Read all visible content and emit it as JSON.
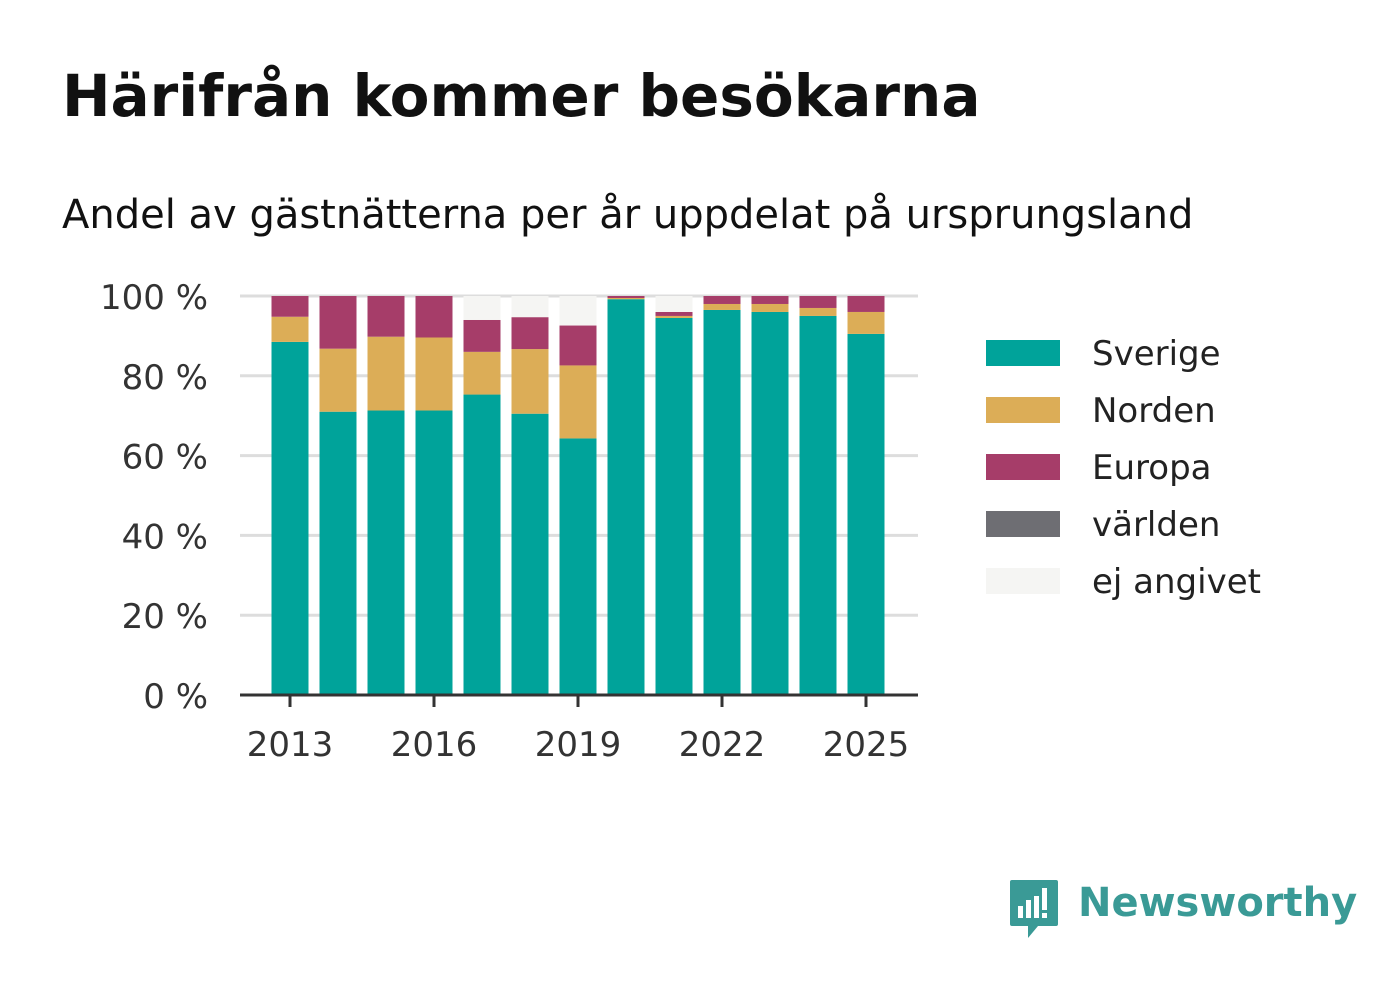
{
  "title": "Härifrån kommer besökarna",
  "subtitle": "Andel av gästnätterna per år uppdelat på ursprungsland",
  "brand": {
    "name": "Newsworthy",
    "color": "#3a9a96",
    "icon": "newsworthy-logo-icon"
  },
  "chart_data": {
    "type": "bar",
    "stacked": true,
    "categories": [
      "2013",
      "2014",
      "2015",
      "2016",
      "2017",
      "2018",
      "2019",
      "2020",
      "2021",
      "2022",
      "2023",
      "2024",
      "2025"
    ],
    "x_tick_labels": [
      "2013",
      "2016",
      "2019",
      "2022",
      "2025"
    ],
    "y_tick_labels": [
      "0 %",
      "20 %",
      "40 %",
      "60 %",
      "80 %",
      "100 %"
    ],
    "ylim": [
      0,
      100
    ],
    "grid": true,
    "legend_position": "right",
    "series": [
      {
        "name": "Sverige",
        "color": "#00a39a",
        "values": [
          88.5,
          71,
          71.3,
          71.3,
          75.3,
          70.5,
          64.3,
          99.2,
          94.5,
          96.5,
          96,
          95,
          90.5
        ]
      },
      {
        "name": "Norden",
        "color": "#dcad57",
        "values": [
          6.3,
          15.8,
          18.5,
          18.3,
          10.7,
          16.2,
          18.3,
          0.3,
          0.5,
          1.5,
          2,
          2,
          5.5
        ]
      },
      {
        "name": "Europa",
        "color": "#a63d69",
        "values": [
          5.2,
          13.2,
          10.2,
          10.4,
          8,
          8,
          10,
          0.5,
          1,
          2,
          2,
          3,
          4
        ]
      },
      {
        "name": "världen",
        "color": "#6e6e73",
        "values": [
          0,
          0,
          0,
          0,
          0,
          0,
          0,
          0,
          0,
          0,
          0,
          0,
          0
        ]
      },
      {
        "name": "ej angivet",
        "color": "#f5f5f3",
        "values": [
          0,
          0,
          0,
          0,
          6,
          5.3,
          7.4,
          0,
          4,
          0,
          0,
          0,
          0
        ]
      }
    ]
  }
}
